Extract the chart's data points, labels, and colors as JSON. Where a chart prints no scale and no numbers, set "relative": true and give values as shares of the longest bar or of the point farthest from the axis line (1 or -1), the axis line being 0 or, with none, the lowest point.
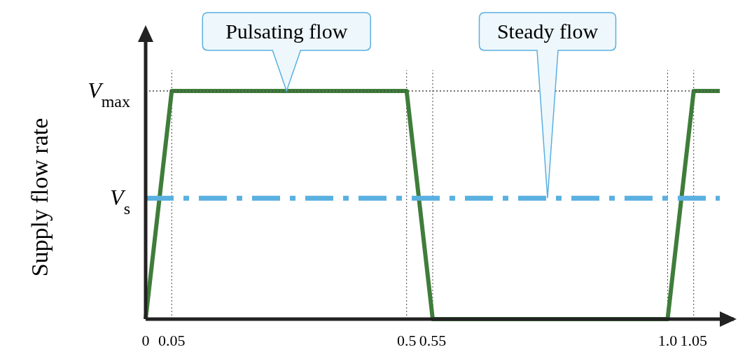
{
  "chart_data": {
    "type": "line",
    "ylabel": "Supply flow rate",
    "relative": true,
    "x": [
      0,
      0.05,
      0.5,
      0.55,
      1.0,
      1.05,
      1.1
    ],
    "series": [
      {
        "color": "#3f7d3a",
        "values": [
          0,
          1,
          1,
          0,
          0,
          1,
          1
        ]
      }
    ],
    "xlim": [
      0,
      1.1
    ],
    "xticks": [
      0,
      0.05,
      0.5,
      0.55,
      {
        "value": 1.0,
        "label": "1.0"
      },
      1.05
    ],
    "ref_lines": [
      {
        "axis": "y",
        "value": 1,
        "label": "V$_{max}$",
        "color": "#444444",
        "line_style": "dotted"
      },
      {
        "axis": "y",
        "value": 0.53,
        "label": "V$_{s}$",
        "color": "#5ab0e0",
        "line_style": "dashdot"
      }
    ],
    "annotations": [
      {
        "text": "Pulsating flow",
        "x": 0.27,
        "y": 1
      },
      "Steady flow"
    ],
    "grid": "x",
    "marker": "none",
    "line_style": "solid"
  }
}
